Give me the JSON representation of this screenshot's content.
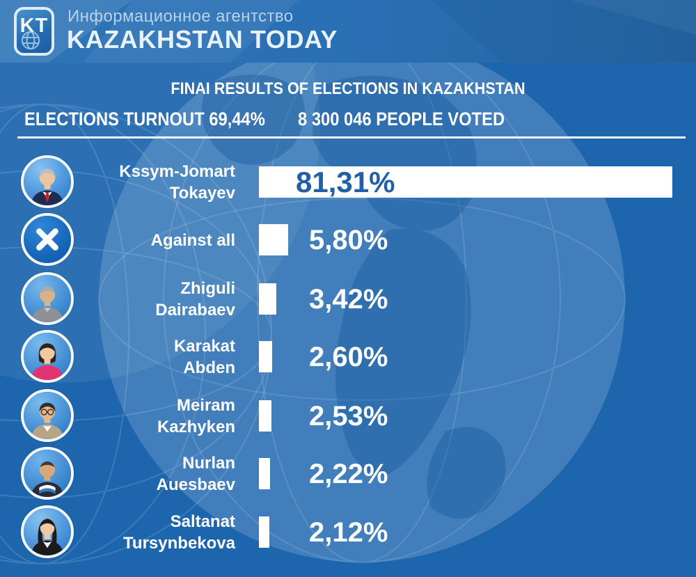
{
  "header": {
    "logo_text": "KT",
    "agency_line": "Информационное агентство",
    "brand": "KAZAKHSTAN TODAY"
  },
  "title": "FINAI RESULTS OF ELECTIONS IN KAZAKHSTAN",
  "stats": {
    "turnout": "ELECTIONS TURNOUT 69,44%",
    "voted": "8 300 046 PEOPLE VOTED"
  },
  "chart_data": {
    "type": "bar",
    "orientation": "horizontal",
    "title": "FINAI RESULTS OF ELECTIONS IN KAZAKHSTAN",
    "subtitle": "ELECTIONS TURNOUT 69,44% — 8 300 046 PEOPLE VOTED",
    "categories": [
      "Kssym-Jomart Tokayev",
      "Against all",
      "Zhiguli Dairabaev",
      "Karakat Abden",
      "Meiram Kazhyken",
      "Nurlan Auesbaev",
      "Saltanat Tursynbekova"
    ],
    "values": [
      81.31,
      5.8,
      3.42,
      2.6,
      2.53,
      2.22,
      2.12
    ],
    "value_labels": [
      "81,31%",
      "5,80%",
      "3,42%",
      "2,60%",
      "2,53%",
      "2,22%",
      "2,12%"
    ],
    "unit": "%",
    "xlabel": "",
    "ylabel": "",
    "xlim": [
      0,
      100
    ],
    "grid": false,
    "legend": "none",
    "bar_color": "#ffffff",
    "label_color_first_bar": "#2160a8",
    "label_color_other_bars": "#ffffff"
  },
  "candidates": [
    {
      "line1": "Kssym-Jomart",
      "line2": "Tokayev",
      "label": "81,31%",
      "value": 81.31,
      "avatar": {
        "kind": "person",
        "bg1": "#86c2f0",
        "bg2": "#2e7ed2",
        "hair": "#b9bfc6",
        "skin": "#ebc59e",
        "top": "#1f2c4e",
        "shirt": "#ffffff",
        "accent": "#c4232e"
      }
    },
    {
      "line1": "Against all",
      "line2": "",
      "label": "5,80%",
      "value": 5.8,
      "avatar": {
        "kind": "x",
        "bg1": "#2f86da",
        "bg2": "#0f5cab"
      }
    },
    {
      "line1": "Zhiguli",
      "line2": "Dairabaev",
      "label": "3,42%",
      "value": 3.42,
      "avatar": {
        "kind": "person",
        "bg1": "#74b7ec",
        "bg2": "#2d7bc9",
        "hair": "#a6abae",
        "skin": "#d9b28c",
        "top": "#8d9196",
        "shirt": "#c6cacd",
        "accent": "#8d9196"
      }
    },
    {
      "line1": "Karakat",
      "line2": "Abden",
      "label": "2,60%",
      "value": 2.6,
      "avatar": {
        "kind": "person",
        "bg1": "#79bbee",
        "bg2": "#2d7bc9",
        "hair": "#2a2320",
        "skin": "#eecaa2",
        "top": "#e03370",
        "shirt": "#e03370",
        "accent": "#e03370"
      }
    },
    {
      "line1": "Meiram",
      "line2": "Kazhyken",
      "label": "2,53%",
      "value": 2.53,
      "avatar": {
        "kind": "person",
        "bg1": "#79bbee",
        "bg2": "#2d7bc9",
        "hair": "#332c28",
        "skin": "#e2b98f",
        "top": "#b5a488",
        "shirt": "#ffffff",
        "accent": "#b5a488"
      }
    },
    {
      "line1": "Nurlan",
      "line2": "Auesbaev",
      "label": "2,22%",
      "value": 2.22,
      "avatar": {
        "kind": "person",
        "bg1": "#6fb4ea",
        "bg2": "#2b77c5",
        "hair": "#41392f",
        "skin": "#d9a877",
        "top": "#262b36",
        "shirt": "#ffffff",
        "accent": "#3577c9"
      }
    },
    {
      "line1": "Saltanat",
      "line2": "Tursynbekova",
      "label": "2,12%",
      "value": 2.12,
      "avatar": {
        "kind": "person",
        "bg1": "#86c2f0",
        "bg2": "#2e7ed2",
        "hair": "#211b18",
        "skin": "#edcaa6",
        "top": "#1b1a1f",
        "shirt": "#ffffff",
        "accent": "#1b1a1f"
      }
    }
  ],
  "colors": {
    "background": "#1d66ae",
    "header_band": "#2a6fb3",
    "bar": "#ffffff",
    "divider": "#f4f8fc",
    "text": "#ffffff",
    "first_bar_value_text": "#2160a8",
    "agency_text": "#b7d3ea"
  }
}
